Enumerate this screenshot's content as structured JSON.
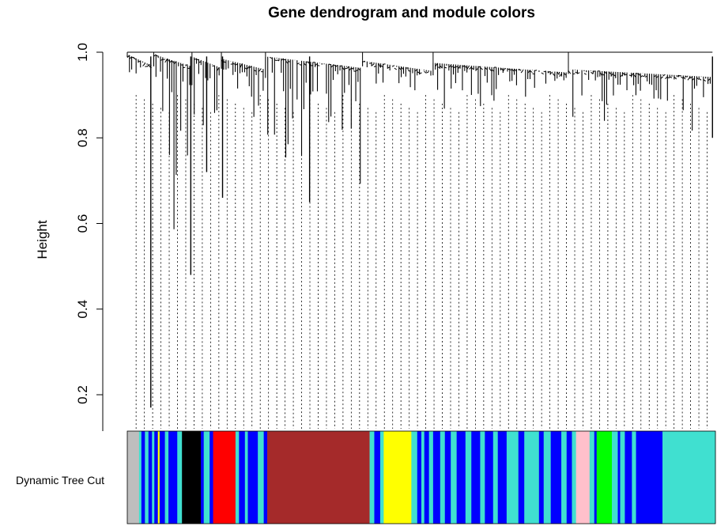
{
  "chart_data": {
    "type": "dendrogram",
    "title": "Gene dendrogram and module colors",
    "ylabel": "Height",
    "ylim": [
      0.12,
      1.0
    ],
    "yticks": [
      0.2,
      0.4,
      0.6,
      0.8,
      1.0
    ],
    "ytick_labels": [
      "0.2",
      "0.4",
      "0.6",
      "0.8",
      "1.0"
    ],
    "grid": false,
    "color_row_label": "Dynamic Tree Cut",
    "color_row_name": "module-colors",
    "module_colors": {
      "grey": "#BEBEBE",
      "turquoise": "#40E0D0",
      "blue": "#0000FF",
      "brown": "#A52A2A",
      "yellow": "#FFFF00",
      "red": "#FF0000",
      "black": "#000000",
      "green": "#00FF00",
      "pink": "#FFC0CB"
    },
    "color_segments": [
      {
        "module": "grey",
        "from": 0.0,
        "to": 0.02
      },
      {
        "module": "turquoise",
        "from": 0.02,
        "to": 0.024
      },
      {
        "module": "blue",
        "from": 0.024,
        "to": 0.03
      },
      {
        "module": "turquoise",
        "from": 0.03,
        "to": 0.036
      },
      {
        "module": "blue",
        "from": 0.036,
        "to": 0.042
      },
      {
        "module": "turquoise",
        "from": 0.042,
        "to": 0.046
      },
      {
        "module": "blue",
        "from": 0.046,
        "to": 0.052
      },
      {
        "module": "yellow",
        "from": 0.052,
        "to": 0.055
      },
      {
        "module": "blue",
        "from": 0.055,
        "to": 0.064
      },
      {
        "module": "turquoise",
        "from": 0.064,
        "to": 0.07
      },
      {
        "module": "blue",
        "from": 0.07,
        "to": 0.085
      },
      {
        "module": "turquoise",
        "from": 0.085,
        "to": 0.093
      },
      {
        "module": "black",
        "from": 0.093,
        "to": 0.125
      },
      {
        "module": "blue",
        "from": 0.125,
        "to": 0.13
      },
      {
        "module": "turquoise",
        "from": 0.13,
        "to": 0.14
      },
      {
        "module": "blue",
        "from": 0.14,
        "to": 0.146
      },
      {
        "module": "red",
        "from": 0.146,
        "to": 0.184
      },
      {
        "module": "turquoise",
        "from": 0.184,
        "to": 0.19
      },
      {
        "module": "blue",
        "from": 0.19,
        "to": 0.2
      },
      {
        "module": "turquoise",
        "from": 0.2,
        "to": 0.205
      },
      {
        "module": "blue",
        "from": 0.205,
        "to": 0.222
      },
      {
        "module": "turquoise",
        "from": 0.222,
        "to": 0.232
      },
      {
        "module": "blue",
        "from": 0.232,
        "to": 0.238
      },
      {
        "module": "brown",
        "from": 0.238,
        "to": 0.412
      },
      {
        "module": "turquoise",
        "from": 0.412,
        "to": 0.42
      },
      {
        "module": "blue",
        "from": 0.42,
        "to": 0.43
      },
      {
        "module": "turquoise",
        "from": 0.43,
        "to": 0.436
      },
      {
        "module": "yellow",
        "from": 0.436,
        "to": 0.483
      },
      {
        "module": "turquoise",
        "from": 0.483,
        "to": 0.493
      },
      {
        "module": "blue",
        "from": 0.493,
        "to": 0.5
      },
      {
        "module": "turquoise",
        "from": 0.5,
        "to": 0.505
      },
      {
        "module": "blue",
        "from": 0.505,
        "to": 0.513
      },
      {
        "module": "turquoise",
        "from": 0.513,
        "to": 0.52
      },
      {
        "module": "blue",
        "from": 0.52,
        "to": 0.532
      },
      {
        "module": "turquoise",
        "from": 0.532,
        "to": 0.54
      },
      {
        "module": "blue",
        "from": 0.54,
        "to": 0.55
      },
      {
        "module": "turquoise",
        "from": 0.55,
        "to": 0.56
      },
      {
        "module": "blue",
        "from": 0.56,
        "to": 0.575
      },
      {
        "module": "turquoise",
        "from": 0.575,
        "to": 0.585
      },
      {
        "module": "blue",
        "from": 0.585,
        "to": 0.6
      },
      {
        "module": "turquoise",
        "from": 0.6,
        "to": 0.608
      },
      {
        "module": "blue",
        "from": 0.608,
        "to": 0.622
      },
      {
        "module": "turquoise",
        "from": 0.622,
        "to": 0.63
      },
      {
        "module": "blue",
        "from": 0.63,
        "to": 0.645
      },
      {
        "module": "turquoise",
        "from": 0.645,
        "to": 0.665
      },
      {
        "module": "blue",
        "from": 0.665,
        "to": 0.675
      },
      {
        "module": "turquoise",
        "from": 0.675,
        "to": 0.7
      },
      {
        "module": "blue",
        "from": 0.7,
        "to": 0.708
      },
      {
        "module": "turquoise",
        "from": 0.708,
        "to": 0.72
      },
      {
        "module": "blue",
        "from": 0.72,
        "to": 0.738
      },
      {
        "module": "turquoise",
        "from": 0.738,
        "to": 0.747
      },
      {
        "module": "blue",
        "from": 0.747,
        "to": 0.756
      },
      {
        "module": "turquoise",
        "from": 0.756,
        "to": 0.763
      },
      {
        "module": "pink",
        "from": 0.763,
        "to": 0.786
      },
      {
        "module": "turquoise",
        "from": 0.786,
        "to": 0.794
      },
      {
        "module": "blue",
        "from": 0.794,
        "to": 0.798
      },
      {
        "module": "green",
        "from": 0.798,
        "to": 0.824
      },
      {
        "module": "turquoise",
        "from": 0.824,
        "to": 0.834
      },
      {
        "module": "blue",
        "from": 0.834,
        "to": 0.838
      },
      {
        "module": "turquoise",
        "from": 0.838,
        "to": 0.846
      },
      {
        "module": "blue",
        "from": 0.846,
        "to": 0.858
      },
      {
        "module": "turquoise",
        "from": 0.858,
        "to": 0.865
      },
      {
        "module": "blue",
        "from": 0.865,
        "to": 0.91
      },
      {
        "module": "turquoise",
        "from": 0.91,
        "to": 1.0
      }
    ],
    "major_clusters": [
      {
        "from": 0.0,
        "to": 0.045,
        "top": 0.995,
        "min": 0.93
      },
      {
        "from": 0.045,
        "to": 0.11,
        "top": 0.995,
        "min": 0.48
      },
      {
        "from": 0.11,
        "to": 0.16,
        "top": 0.99,
        "min": 0.72
      },
      {
        "from": 0.16,
        "to": 0.235,
        "top": 0.985,
        "min": 0.76
      },
      {
        "from": 0.235,
        "to": 0.4,
        "top": 0.99,
        "min": 0.65
      },
      {
        "from": 0.4,
        "to": 0.52,
        "top": 0.98,
        "min": 0.85
      },
      {
        "from": 0.52,
        "to": 0.75,
        "top": 0.975,
        "min": 0.85
      },
      {
        "from": 0.75,
        "to": 0.995,
        "top": 0.96,
        "min": 0.8
      }
    ],
    "single_drops": [
      {
        "x": 0.04,
        "y": 0.17
      },
      {
        "x": 0.108,
        "y": 0.48
      },
      {
        "x": 0.135,
        "y": 0.72
      },
      {
        "x": 0.162,
        "y": 0.66
      },
      {
        "x": 0.31,
        "y": 0.65
      },
      {
        "x": 0.995,
        "y": 0.8
      }
    ]
  }
}
